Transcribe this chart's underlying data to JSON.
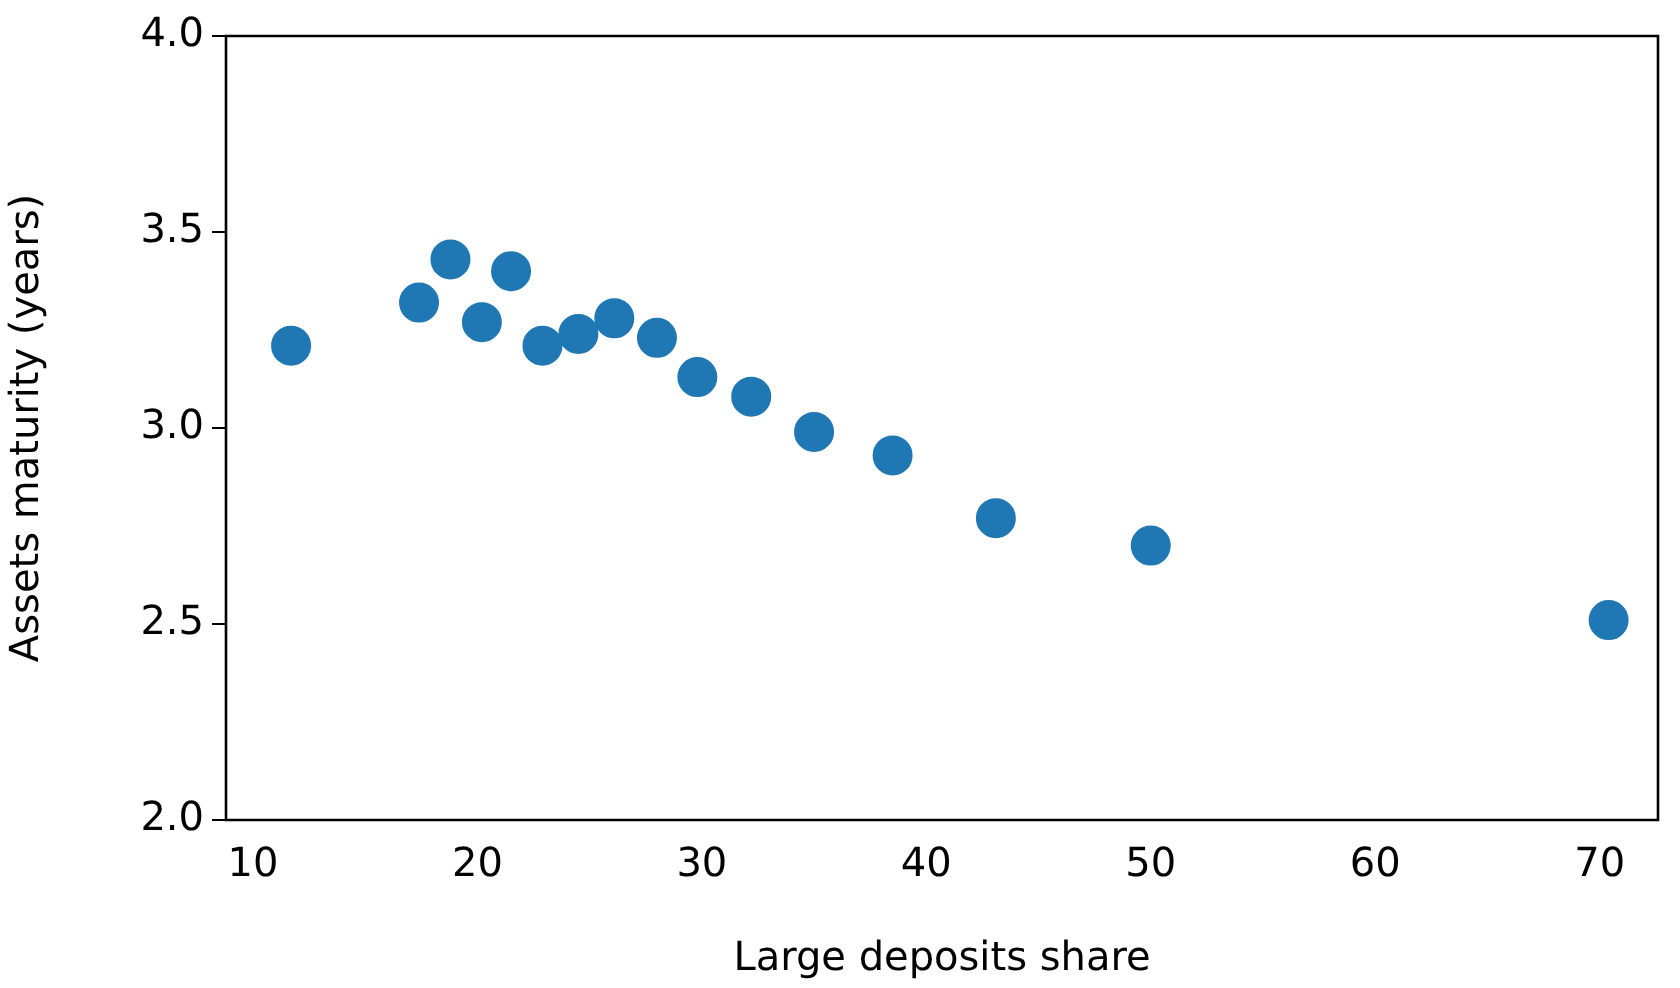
{
  "chart_data": {
    "type": "scatter",
    "xlabel": "Large deposits share",
    "ylabel": "Assets maturity (years)",
    "x": [
      11.7,
      17.4,
      18.8,
      20.2,
      21.5,
      22.9,
      24.5,
      26.1,
      28.0,
      29.8,
      32.2,
      35.0,
      38.5,
      43.1,
      50.0,
      70.4
    ],
    "values": [
      3.21,
      3.32,
      3.43,
      3.27,
      3.4,
      3.21,
      3.24,
      3.28,
      3.23,
      3.13,
      3.08,
      2.99,
      2.93,
      2.77,
      2.7,
      2.51
    ],
    "color": "#1f77b4",
    "marker": "circle",
    "xlim": [
      8.8,
      72.6
    ],
    "xticks": [
      10,
      20,
      30,
      40,
      50,
      60,
      70
    ],
    "ylim": [
      2.0,
      4.0
    ],
    "yticks": [
      {
        "value": 2,
        "label": "2.0"
      },
      2.5,
      {
        "value": 3,
        "label": "3.0"
      },
      3.5,
      {
        "value": 4,
        "label": "4.0"
      }
    ],
    "grid": false,
    "legend": false
  }
}
